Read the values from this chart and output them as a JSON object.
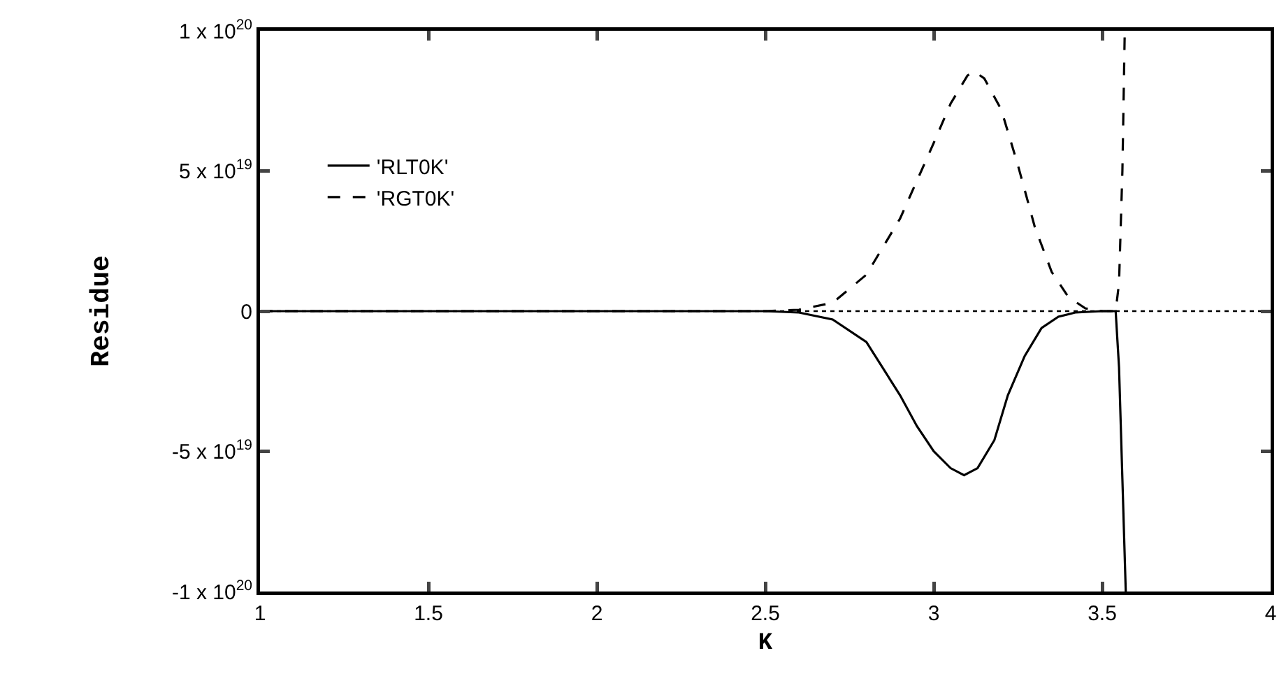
{
  "chart_data": {
    "type": "line",
    "xlabel": "K",
    "ylabel": "Residue",
    "xlim": [
      1,
      4
    ],
    "xticks": [
      1,
      1.5,
      2,
      2.5,
      3,
      3.5,
      4
    ],
    "ylim": [
      -1e+20,
      1e+20
    ],
    "yticks": [
      {
        "value": -1e+20,
        "label": "-1 x 10$^{20}$"
      },
      {
        "value": -5e+19,
        "label": "-5 x 10$^{19}$"
      },
      0,
      {
        "value": 5e+19,
        "label": "5 x 10$^{19}$"
      },
      {
        "value": 1e+20,
        "label": "1 x 10$^{20}$"
      }
    ],
    "grid": false,
    "legend": "top left",
    "marker": "none",
    "series": [
      {
        "name": "'RLT0K'",
        "color": "#000000",
        "line_style": "solid",
        "x": [
          1,
          2,
          2.5,
          2.6,
          2.7,
          2.8,
          2.9,
          2.95,
          3.0,
          3.05,
          3.09,
          3.13,
          3.18,
          3.22,
          3.27,
          3.32,
          3.37,
          3.42,
          3.5,
          3.54,
          3.55,
          3.56,
          3.57
        ],
        "values": [
          0,
          0,
          0,
          -5e+17,
          -3e+18,
          -1.1e+19,
          -3e+19,
          -4.1e+19,
          -5e+19,
          -5.6e+19,
          -5.85e+19,
          -5.6e+19,
          -4.6e+19,
          -3e+19,
          -1.6e+19,
          -6e+18,
          -2e+18,
          -5e+17,
          0,
          0,
          -2e+19,
          -6e+19,
          -1e+20
        ]
      },
      {
        "name": "'RGT0K'",
        "color": "#000000",
        "line_style": "dashed",
        "x": [
          1,
          2,
          2.5,
          2.6,
          2.7,
          2.8,
          2.9,
          3.0,
          3.05,
          3.1,
          3.12,
          3.15,
          3.2,
          3.25,
          3.3,
          3.35,
          3.4,
          3.45,
          3.5,
          3.54,
          3.55,
          3.56,
          3.567
        ],
        "values": [
          0,
          0,
          0,
          5e+17,
          3e+18,
          1.3e+19,
          3.3e+19,
          6e+19,
          7.4e+19,
          8.4e+19,
          8.55e+19,
          8.3e+19,
          7.2e+19,
          5.2e+19,
          3e+19,
          1.4e+19,
          5e+18,
          1e+18,
          0,
          0,
          1e+19,
          5e+19,
          1e+20
        ]
      }
    ],
    "ref_lines": [
      {
        "axis": "y",
        "value": 0,
        "line_style": "dotted",
        "color": "#000000"
      }
    ]
  }
}
